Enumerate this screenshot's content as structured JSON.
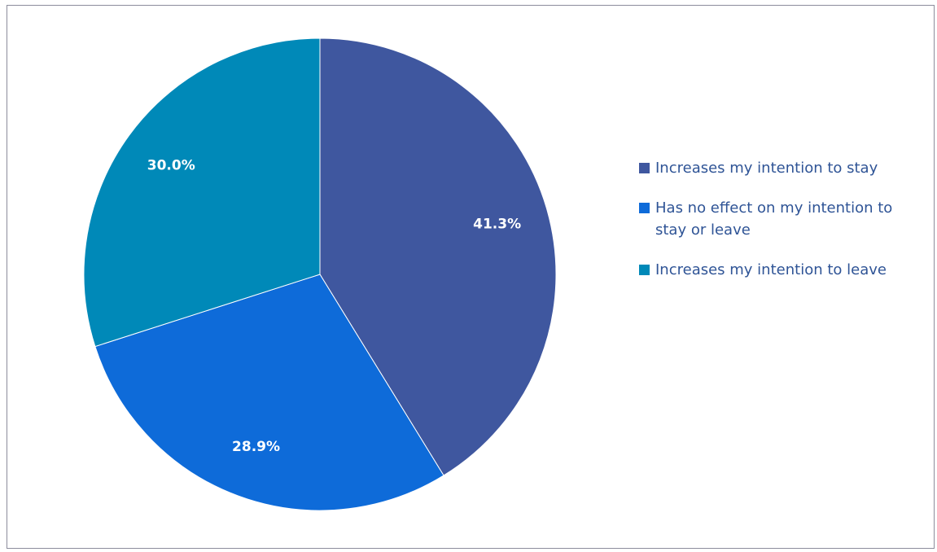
{
  "chart_data": {
    "type": "pie",
    "title": "",
    "slices": [
      {
        "label": "Increases my intention to stay",
        "value": 41.3,
        "display": "41.3%",
        "color": "#3f579f"
      },
      {
        "label": "Has no effect on my intention to stay or leave",
        "value": 28.9,
        "display": "28.9%",
        "color": "#0e6bd9"
      },
      {
        "label": "Increases my intention to leave",
        "value": 30.0,
        "display": "30.0%",
        "color": "#0089b8"
      }
    ],
    "legend_position": "right",
    "start_angle_deg": 0,
    "direction": "clockwise"
  },
  "legend": {
    "items": [
      {
        "text": "Increases my intention to stay",
        "color": "#3f579f"
      },
      {
        "text": "Has no effect on my intention to stay or leave",
        "color": "#0e6bd9"
      },
      {
        "text": "Increases my intention to leave",
        "color": "#0089b8"
      }
    ]
  }
}
